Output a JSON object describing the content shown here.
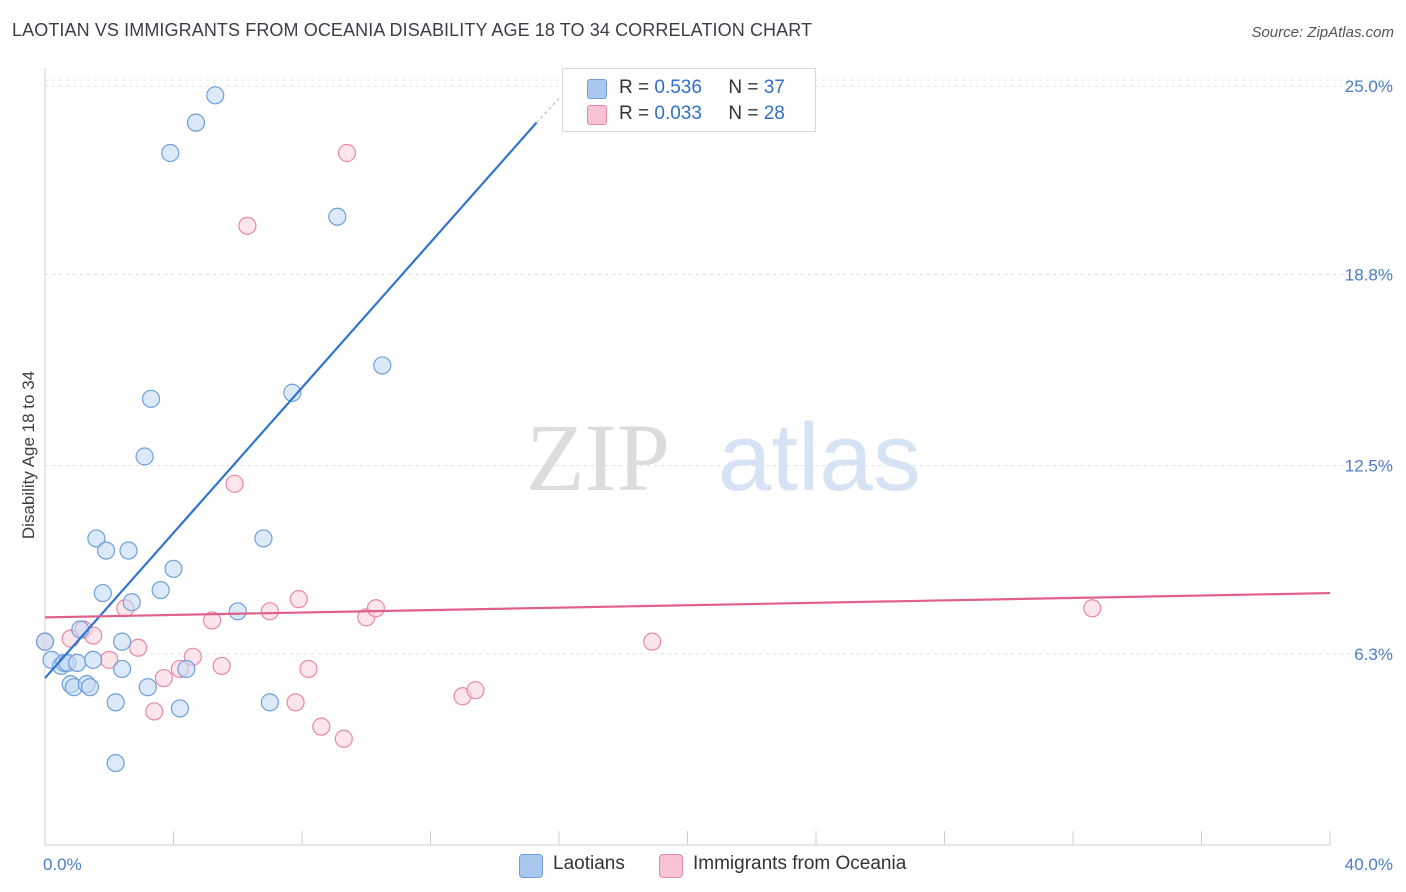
{
  "title": "LAOTIAN VS IMMIGRANTS FROM OCEANIA DISABILITY AGE 18 TO 34 CORRELATION CHART",
  "source": "Source: ZipAtlas.com",
  "watermark": {
    "zip": "ZIP",
    "atlas": "atlas"
  },
  "legend": {
    "r_label": "R =",
    "n_label": "N =",
    "series": [
      {
        "name": "Laotians",
        "r": "0.536",
        "n": "37",
        "color": "#a9c8f0",
        "stroke": "#6e9fdc"
      },
      {
        "name": "Immigrants from Oceania",
        "r": "0.033",
        "n": "28",
        "color": "#f8c4d4",
        "stroke": "#e888a8"
      }
    ]
  },
  "chart_data": {
    "type": "scatter",
    "title": "LAOTIAN VS IMMIGRANTS FROM OCEANIA DISABILITY AGE 18 TO 34 CORRELATION CHART",
    "xlabel": "",
    "ylabel": "Disability Age 18 to 34",
    "xlim": [
      0,
      40
    ],
    "ylim": [
      0,
      25.6
    ],
    "x_tick_labels": [
      "0.0%",
      "40.0%"
    ],
    "y_ticks": [
      {
        "value": 6.3,
        "label": "6.3%"
      },
      {
        "value": 12.5,
        "label": "12.5%"
      },
      {
        "value": 18.8,
        "label": "18.8%"
      },
      {
        "value": 25.0,
        "label": "25.0%"
      }
    ],
    "series": [
      {
        "name": "Laotians",
        "color": "#6e9fdc",
        "fill": "#c5daf5",
        "trend": {
          "x": [
            0.0,
            15.3
          ],
          "y": [
            5.5,
            23.8
          ],
          "color": "#2f73cf",
          "dash_to": {
            "x": 16.0,
            "y": 24.6
          }
        },
        "points": [
          [
            0.0,
            6.7
          ],
          [
            0.2,
            6.1
          ],
          [
            0.5,
            5.9
          ],
          [
            0.6,
            6.0
          ],
          [
            0.7,
            6.0
          ],
          [
            0.8,
            5.3
          ],
          [
            0.9,
            5.2
          ],
          [
            1.0,
            6.0
          ],
          [
            1.1,
            7.1
          ],
          [
            1.3,
            5.3
          ],
          [
            1.4,
            5.2
          ],
          [
            1.5,
            6.1
          ],
          [
            1.6,
            10.1
          ],
          [
            1.8,
            8.3
          ],
          [
            1.9,
            9.7
          ],
          [
            2.2,
            4.7
          ],
          [
            2.2,
            2.7
          ],
          [
            2.4,
            6.7
          ],
          [
            2.4,
            5.8
          ],
          [
            2.6,
            9.7
          ],
          [
            2.7,
            8.0
          ],
          [
            3.1,
            12.8
          ],
          [
            3.2,
            5.2
          ],
          [
            3.3,
            14.7
          ],
          [
            3.6,
            8.4
          ],
          [
            3.9,
            22.8
          ],
          [
            4.0,
            9.1
          ],
          [
            4.2,
            4.5
          ],
          [
            4.4,
            5.8
          ],
          [
            4.7,
            23.8
          ],
          [
            5.3,
            24.7
          ],
          [
            6.0,
            7.7
          ],
          [
            6.8,
            10.1
          ],
          [
            7.0,
            4.7
          ],
          [
            7.7,
            14.9
          ],
          [
            9.1,
            20.7
          ],
          [
            10.5,
            15.8
          ]
        ]
      },
      {
        "name": "Immigrants from Oceania",
        "color": "#e888a8",
        "fill": "#fbd3df",
        "trend": {
          "x": [
            0.0,
            40.0
          ],
          "y": [
            7.5,
            8.3
          ],
          "color": "#e0608a"
        },
        "points": [
          [
            0.0,
            6.7
          ],
          [
            0.8,
            6.8
          ],
          [
            1.2,
            7.1
          ],
          [
            1.5,
            6.9
          ],
          [
            2.0,
            6.1
          ],
          [
            2.5,
            7.8
          ],
          [
            2.9,
            6.5
          ],
          [
            3.4,
            4.4
          ],
          [
            3.7,
            5.5
          ],
          [
            4.2,
            5.8
          ],
          [
            4.6,
            6.2
          ],
          [
            5.2,
            7.4
          ],
          [
            5.5,
            5.9
          ],
          [
            5.9,
            11.9
          ],
          [
            6.3,
            20.4
          ],
          [
            7.0,
            7.7
          ],
          [
            7.8,
            4.7
          ],
          [
            7.9,
            8.1
          ],
          [
            8.2,
            5.8
          ],
          [
            8.6,
            3.9
          ],
          [
            9.3,
            3.5
          ],
          [
            9.4,
            22.8
          ],
          [
            10.0,
            7.5
          ],
          [
            10.3,
            7.8
          ],
          [
            13.0,
            4.9
          ],
          [
            13.4,
            5.1
          ],
          [
            18.9,
            6.7
          ],
          [
            32.6,
            7.8
          ]
        ]
      }
    ]
  }
}
